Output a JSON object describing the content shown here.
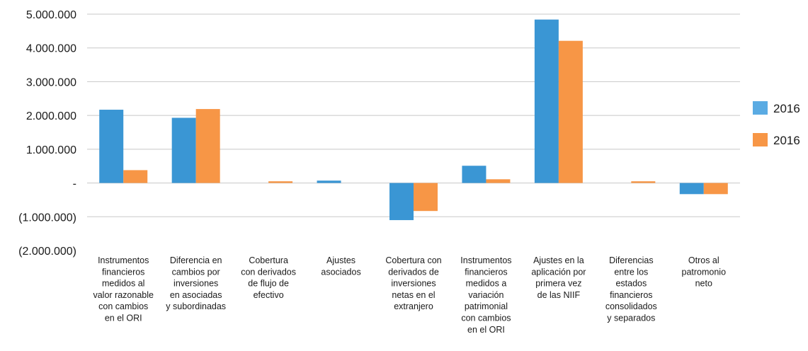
{
  "chart_data": {
    "type": "bar",
    "title": "",
    "xlabel": "",
    "ylabel": "",
    "ylim": [
      -2000000,
      5000000
    ],
    "yticks": [
      {
        "value": 5000000,
        "label": "5.000.000"
      },
      {
        "value": 4000000,
        "label": "4.000.000"
      },
      {
        "value": 3000000,
        "label": "3.000.000"
      },
      {
        "value": 2000000,
        "label": "2.000.000"
      },
      {
        "value": 1000000,
        "label": "1.000.000"
      },
      {
        "value": 0,
        "label": "-"
      },
      {
        "value": -1000000,
        "label": "(1.000.000)"
      },
      {
        "value": -2000000,
        "label": "(2.000.000)"
      }
    ],
    "grid": true,
    "legend_position": "right",
    "categories": [
      [
        "Instrumentos",
        "financieros",
        "medidos al",
        "valor razonable",
        "con cambios",
        "en el ORI"
      ],
      [
        "Diferencia en",
        "cambios por",
        "inversiones",
        "en asociadas",
        "y subordinadas"
      ],
      [
        "Cobertura",
        "con derivados",
        "de flujo de",
        "efectivo"
      ],
      [
        "Ajustes",
        "asociados"
      ],
      [
        "Cobertura con",
        "derivados de",
        "inversiones",
        "netas en el",
        "extranjero"
      ],
      [
        "Instrumentos",
        "financieros",
        "medidos a",
        "variación",
        "patrimonial",
        "con cambios",
        "en el ORI"
      ],
      [
        "Ajustes en la",
        "aplicación por",
        "primera vez",
        "de las NIIF"
      ],
      [
        "Diferencias",
        "entre los",
        "estados",
        "financieros",
        "consolidados",
        "y separados"
      ],
      [
        "Otros al",
        "patromonio",
        "neto"
      ]
    ],
    "series": [
      {
        "name": "2016",
        "color": "#3a96d4",
        "legend_color": "#5aabe3",
        "values": [
          2170000,
          1930000,
          0,
          70000,
          -1100000,
          510000,
          4840000,
          0,
          -330000
        ]
      },
      {
        "name": "2016",
        "color": "#f79646",
        "legend_color": "#f79646",
        "values": [
          380000,
          2190000,
          50000,
          0,
          -830000,
          110000,
          4210000,
          50000,
          -330000
        ]
      }
    ]
  }
}
